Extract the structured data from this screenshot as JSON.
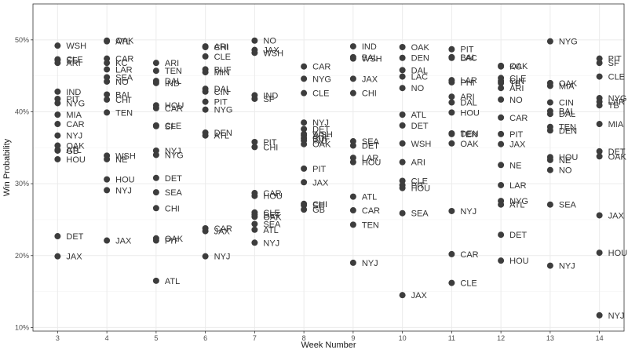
{
  "chart_data": {
    "type": "scatter",
    "title": "",
    "xlabel": "Week Number",
    "ylabel": "Win Probability",
    "x_ticks": [
      3,
      4,
      5,
      6,
      7,
      8,
      9,
      10,
      11,
      12,
      13,
      14
    ],
    "y_ticks": [
      0.1,
      0.2,
      0.3,
      0.4,
      0.5
    ],
    "y_tick_labels": [
      "10%",
      "20%",
      "30%",
      "40%",
      "50%"
    ],
    "xlim": [
      2.5,
      14.5
    ],
    "ylim": [
      0.095,
      0.55
    ],
    "grid": true,
    "point_color": "#3d3d3d",
    "points": [
      {
        "x": 3,
        "y": 0.492,
        "label": "WSH"
      },
      {
        "x": 3,
        "y": 0.473,
        "label": "CLE"
      },
      {
        "x": 3,
        "y": 0.472,
        "label": "SF"
      },
      {
        "x": 3,
        "y": 0.468,
        "label": "ARI"
      },
      {
        "x": 3,
        "y": 0.428,
        "label": "IND"
      },
      {
        "x": 3,
        "y": 0.418,
        "label": "PIT"
      },
      {
        "x": 3,
        "y": 0.412,
        "label": "NYG"
      },
      {
        "x": 3,
        "y": 0.396,
        "label": "MIA"
      },
      {
        "x": 3,
        "y": 0.383,
        "label": "CAR"
      },
      {
        "x": 3,
        "y": 0.367,
        "label": "NYJ"
      },
      {
        "x": 3,
        "y": 0.353,
        "label": "OAK"
      },
      {
        "x": 3,
        "y": 0.346,
        "label": "GB"
      },
      {
        "x": 3,
        "y": 0.347,
        "label": "ATL"
      },
      {
        "x": 3,
        "y": 0.334,
        "label": "HOU"
      },
      {
        "x": 3,
        "y": 0.227,
        "label": "DET"
      },
      {
        "x": 3,
        "y": 0.199,
        "label": "JAX"
      },
      {
        "x": 4,
        "y": 0.499,
        "label": "OAK"
      },
      {
        "x": 4,
        "y": 0.498,
        "label": "ATL"
      },
      {
        "x": 4,
        "y": 0.474,
        "label": "CAR"
      },
      {
        "x": 4,
        "y": 0.468,
        "label": "KC"
      },
      {
        "x": 4,
        "y": 0.459,
        "label": "LAR"
      },
      {
        "x": 4,
        "y": 0.448,
        "label": "SEA"
      },
      {
        "x": 4,
        "y": 0.442,
        "label": "NO"
      },
      {
        "x": 4,
        "y": 0.424,
        "label": "BAL"
      },
      {
        "x": 4,
        "y": 0.417,
        "label": "CHI"
      },
      {
        "x": 4,
        "y": 0.399,
        "label": "TEN"
      },
      {
        "x": 4,
        "y": 0.339,
        "label": "WSH"
      },
      {
        "x": 4,
        "y": 0.334,
        "label": "NE"
      },
      {
        "x": 4,
        "y": 0.306,
        "label": "HOU"
      },
      {
        "x": 4,
        "y": 0.291,
        "label": "NYJ"
      },
      {
        "x": 4,
        "y": 0.221,
        "label": "JAX"
      },
      {
        "x": 5,
        "y": 0.468,
        "label": "ARI"
      },
      {
        "x": 5,
        "y": 0.457,
        "label": "TEN"
      },
      {
        "x": 5,
        "y": 0.443,
        "label": "DAL"
      },
      {
        "x": 5,
        "y": 0.44,
        "label": "IND"
      },
      {
        "x": 5,
        "y": 0.409,
        "label": "HOU"
      },
      {
        "x": 5,
        "y": 0.405,
        "label": "CAR"
      },
      {
        "x": 5,
        "y": 0.381,
        "label": "CLE"
      },
      {
        "x": 5,
        "y": 0.38,
        "label": "SF"
      },
      {
        "x": 5,
        "y": 0.346,
        "label": "NYJ"
      },
      {
        "x": 5,
        "y": 0.34,
        "label": "NYG"
      },
      {
        "x": 5,
        "y": 0.308,
        "label": "DET"
      },
      {
        "x": 5,
        "y": 0.288,
        "label": "SEA"
      },
      {
        "x": 5,
        "y": 0.266,
        "label": "CHI"
      },
      {
        "x": 5,
        "y": 0.224,
        "label": "OAK"
      },
      {
        "x": 5,
        "y": 0.221,
        "label": "PIT"
      },
      {
        "x": 5,
        "y": 0.165,
        "label": "ATL"
      },
      {
        "x": 6,
        "y": 0.491,
        "label": "ARI"
      },
      {
        "x": 6,
        "y": 0.49,
        "label": "CHI"
      },
      {
        "x": 6,
        "y": 0.477,
        "label": "CLE"
      },
      {
        "x": 6,
        "y": 0.459,
        "label": "BUF"
      },
      {
        "x": 6,
        "y": 0.455,
        "label": "MIN"
      },
      {
        "x": 6,
        "y": 0.432,
        "label": "DAL"
      },
      {
        "x": 6,
        "y": 0.428,
        "label": "CIN"
      },
      {
        "x": 6,
        "y": 0.414,
        "label": "PIT"
      },
      {
        "x": 6,
        "y": 0.403,
        "label": "NYG"
      },
      {
        "x": 6,
        "y": 0.371,
        "label": "DEN"
      },
      {
        "x": 6,
        "y": 0.367,
        "label": "ATL"
      },
      {
        "x": 6,
        "y": 0.238,
        "label": "CAR"
      },
      {
        "x": 6,
        "y": 0.234,
        "label": "JAX"
      },
      {
        "x": 6,
        "y": 0.199,
        "label": "NYJ"
      },
      {
        "x": 7,
        "y": 0.499,
        "label": "NO"
      },
      {
        "x": 7,
        "y": 0.486,
        "label": "JAX"
      },
      {
        "x": 7,
        "y": 0.482,
        "label": "WSH"
      },
      {
        "x": 7,
        "y": 0.423,
        "label": "IND"
      },
      {
        "x": 7,
        "y": 0.418,
        "label": "SF"
      },
      {
        "x": 7,
        "y": 0.358,
        "label": "PIT"
      },
      {
        "x": 7,
        "y": 0.351,
        "label": "CHI"
      },
      {
        "x": 7,
        "y": 0.287,
        "label": "CAR"
      },
      {
        "x": 7,
        "y": 0.283,
        "label": "HOU"
      },
      {
        "x": 7,
        "y": 0.26,
        "label": "CLE"
      },
      {
        "x": 7,
        "y": 0.257,
        "label": "DET"
      },
      {
        "x": 7,
        "y": 0.254,
        "label": "OAK"
      },
      {
        "x": 7,
        "y": 0.244,
        "label": "SEA"
      },
      {
        "x": 7,
        "y": 0.236,
        "label": "ATL"
      },
      {
        "x": 7,
        "y": 0.218,
        "label": "NYJ"
      },
      {
        "x": 8,
        "y": 0.463,
        "label": "CAR"
      },
      {
        "x": 8,
        "y": 0.446,
        "label": "NYG"
      },
      {
        "x": 8,
        "y": 0.426,
        "label": "CLE"
      },
      {
        "x": 8,
        "y": 0.385,
        "label": "NYJ"
      },
      {
        "x": 8,
        "y": 0.376,
        "label": "DET"
      },
      {
        "x": 8,
        "y": 0.369,
        "label": "WSH"
      },
      {
        "x": 8,
        "y": 0.367,
        "label": "ARI"
      },
      {
        "x": 8,
        "y": 0.363,
        "label": "BUF"
      },
      {
        "x": 8,
        "y": 0.36,
        "label": "IND"
      },
      {
        "x": 8,
        "y": 0.355,
        "label": "OAK"
      },
      {
        "x": 8,
        "y": 0.321,
        "label": "PIT"
      },
      {
        "x": 8,
        "y": 0.302,
        "label": "JAX"
      },
      {
        "x": 8,
        "y": 0.272,
        "label": "CHI"
      },
      {
        "x": 8,
        "y": 0.27,
        "label": "SF"
      },
      {
        "x": 8,
        "y": 0.264,
        "label": "GB"
      },
      {
        "x": 9,
        "y": 0.491,
        "label": "IND"
      },
      {
        "x": 9,
        "y": 0.476,
        "label": "BAL"
      },
      {
        "x": 9,
        "y": 0.474,
        "label": "WSH"
      },
      {
        "x": 9,
        "y": 0.446,
        "label": "JAX"
      },
      {
        "x": 9,
        "y": 0.426,
        "label": "CHI"
      },
      {
        "x": 9,
        "y": 0.359,
        "label": "SEA"
      },
      {
        "x": 9,
        "y": 0.353,
        "label": "DET"
      },
      {
        "x": 9,
        "y": 0.336,
        "label": "LAR"
      },
      {
        "x": 9,
        "y": 0.33,
        "label": "HOU"
      },
      {
        "x": 9,
        "y": 0.282,
        "label": "ATL"
      },
      {
        "x": 9,
        "y": 0.263,
        "label": "CAR"
      },
      {
        "x": 9,
        "y": 0.243,
        "label": "TEN"
      },
      {
        "x": 9,
        "y": 0.19,
        "label": "NYJ"
      },
      {
        "x": 10,
        "y": 0.49,
        "label": "OAK"
      },
      {
        "x": 10,
        "y": 0.475,
        "label": "DEN"
      },
      {
        "x": 10,
        "y": 0.458,
        "label": "DAL"
      },
      {
        "x": 10,
        "y": 0.449,
        "label": "LAC"
      },
      {
        "x": 10,
        "y": 0.433,
        "label": "NO"
      },
      {
        "x": 10,
        "y": 0.396,
        "label": "ATL"
      },
      {
        "x": 10,
        "y": 0.381,
        "label": "DET"
      },
      {
        "x": 10,
        "y": 0.356,
        "label": "WSH"
      },
      {
        "x": 10,
        "y": 0.33,
        "label": "ARI"
      },
      {
        "x": 10,
        "y": 0.304,
        "label": "CLE"
      },
      {
        "x": 10,
        "y": 0.298,
        "label": "PIT"
      },
      {
        "x": 10,
        "y": 0.294,
        "label": "HOU"
      },
      {
        "x": 10,
        "y": 0.259,
        "label": "SEA"
      },
      {
        "x": 10,
        "y": 0.145,
        "label": "JAX"
      },
      {
        "x": 11,
        "y": 0.487,
        "label": "PIT"
      },
      {
        "x": 11,
        "y": 0.476,
        "label": "BAL"
      },
      {
        "x": 11,
        "y": 0.475,
        "label": "LAC"
      },
      {
        "x": 11,
        "y": 0.444,
        "label": "LAR"
      },
      {
        "x": 11,
        "y": 0.441,
        "label": "PHI"
      },
      {
        "x": 11,
        "y": 0.421,
        "label": "ARI"
      },
      {
        "x": 11,
        "y": 0.413,
        "label": "DAL"
      },
      {
        "x": 11,
        "y": 0.399,
        "label": "HOU"
      },
      {
        "x": 11,
        "y": 0.37,
        "label": "DEN"
      },
      {
        "x": 11,
        "y": 0.369,
        "label": "TEN"
      },
      {
        "x": 11,
        "y": 0.356,
        "label": "OAK"
      },
      {
        "x": 11,
        "y": 0.262,
        "label": "NYJ"
      },
      {
        "x": 11,
        "y": 0.202,
        "label": "CAR"
      },
      {
        "x": 11,
        "y": 0.162,
        "label": "CLE"
      },
      {
        "x": 12,
        "y": 0.464,
        "label": "OAK"
      },
      {
        "x": 12,
        "y": 0.463,
        "label": "KC"
      },
      {
        "x": 12,
        "y": 0.447,
        "label": "CLE"
      },
      {
        "x": 12,
        "y": 0.443,
        "label": "CIN"
      },
      {
        "x": 12,
        "y": 0.44,
        "label": "TB"
      },
      {
        "x": 12,
        "y": 0.433,
        "label": "ARI"
      },
      {
        "x": 12,
        "y": 0.417,
        "label": "NO"
      },
      {
        "x": 12,
        "y": 0.392,
        "label": "CAR"
      },
      {
        "x": 12,
        "y": 0.369,
        "label": "PIT"
      },
      {
        "x": 12,
        "y": 0.355,
        "label": "JAX"
      },
      {
        "x": 12,
        "y": 0.326,
        "label": "NE"
      },
      {
        "x": 12,
        "y": 0.298,
        "label": "LAR"
      },
      {
        "x": 12,
        "y": 0.276,
        "label": "NYG"
      },
      {
        "x": 12,
        "y": 0.271,
        "label": "ATL"
      },
      {
        "x": 12,
        "y": 0.229,
        "label": "DET"
      },
      {
        "x": 12,
        "y": 0.193,
        "label": "HOU"
      },
      {
        "x": 13,
        "y": 0.498,
        "label": "NYG"
      },
      {
        "x": 13,
        "y": 0.44,
        "label": "OAK"
      },
      {
        "x": 13,
        "y": 0.436,
        "label": "MIA"
      },
      {
        "x": 13,
        "y": 0.413,
        "label": "CIN"
      },
      {
        "x": 13,
        "y": 0.401,
        "label": "BAL"
      },
      {
        "x": 13,
        "y": 0.397,
        "label": "DAL"
      },
      {
        "x": 13,
        "y": 0.379,
        "label": "TEN"
      },
      {
        "x": 13,
        "y": 0.374,
        "label": "DEN"
      },
      {
        "x": 13,
        "y": 0.337,
        "label": "HOU"
      },
      {
        "x": 13,
        "y": 0.333,
        "label": "NE"
      },
      {
        "x": 13,
        "y": 0.319,
        "label": "NO"
      },
      {
        "x": 13,
        "y": 0.271,
        "label": "SEA"
      },
      {
        "x": 13,
        "y": 0.186,
        "label": "NYJ"
      },
      {
        "x": 14,
        "y": 0.474,
        "label": "PIT"
      },
      {
        "x": 14,
        "y": 0.468,
        "label": "SF"
      },
      {
        "x": 14,
        "y": 0.449,
        "label": "CLE"
      },
      {
        "x": 14,
        "y": 0.419,
        "label": "NYG"
      },
      {
        "x": 14,
        "y": 0.414,
        "label": "LAR"
      },
      {
        "x": 14,
        "y": 0.409,
        "label": "TB"
      },
      {
        "x": 14,
        "y": 0.383,
        "label": "MIA"
      },
      {
        "x": 14,
        "y": 0.345,
        "label": "DET"
      },
      {
        "x": 14,
        "y": 0.338,
        "label": "OAK"
      },
      {
        "x": 14,
        "y": 0.256,
        "label": "JAX"
      },
      {
        "x": 14,
        "y": 0.204,
        "label": "HOU"
      },
      {
        "x": 14,
        "y": 0.117,
        "label": "NYJ"
      }
    ]
  }
}
